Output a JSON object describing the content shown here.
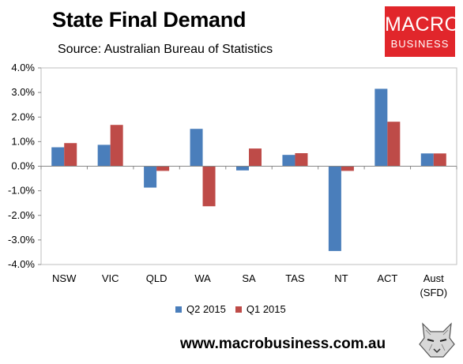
{
  "header": {
    "title": "State Final Demand",
    "subtitle": "Source: Australian Bureau of Statistics"
  },
  "brand": {
    "line1": "MACRO",
    "line2": "BUSINESS",
    "color": "#e1262b"
  },
  "footer": {
    "website": "www.macrobusiness.com.au",
    "mascot_icon": "wolf-head-icon"
  },
  "chart_data": {
    "type": "bar",
    "categories": [
      "NSW",
      "VIC",
      "QLD",
      "WA",
      "SA",
      "TAS",
      "NT",
      "ACT",
      "Aust\n(SFD)"
    ],
    "series": [
      {
        "name": "Q2 2015",
        "color": "#4a7ebb",
        "values": [
          0.77,
          0.87,
          -0.87,
          1.52,
          -0.17,
          0.46,
          -3.45,
          3.15,
          0.52
        ]
      },
      {
        "name": "Q1 2015",
        "color": "#be4b48",
        "values": [
          0.94,
          1.68,
          -0.19,
          -1.63,
          0.72,
          0.53,
          -0.19,
          1.81,
          0.52
        ]
      }
    ],
    "ylim": [
      -4,
      4
    ],
    "yticks": [
      "-4.0%",
      "-3.0%",
      "-2.0%",
      "-1.0%",
      "0.0%",
      "1.0%",
      "2.0%",
      "3.0%",
      "4.0%"
    ],
    "grid": false,
    "legend": "bottom",
    "title": "State Final Demand",
    "xlabel": "",
    "ylabel": ""
  }
}
